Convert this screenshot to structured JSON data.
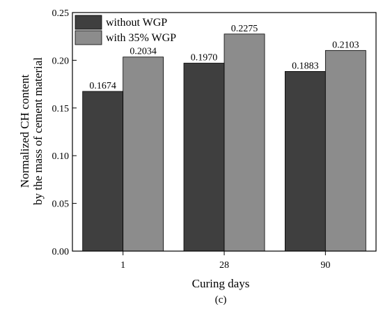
{
  "chart_data": {
    "type": "bar",
    "categories": [
      "1",
      "28",
      "90"
    ],
    "series": [
      {
        "name": "without WGP",
        "values": [
          0.1674,
          0.197,
          0.1883
        ],
        "labels": [
          "0.1674",
          "0.1970",
          "0.1883"
        ],
        "color": "#3f3f3f"
      },
      {
        "name": "with 35% WGP",
        "values": [
          0.2034,
          0.2275,
          0.2103
        ],
        "labels": [
          "0.2034",
          "0.2275",
          "0.2103"
        ],
        "color": "#8c8c8c"
      }
    ],
    "xlabel": "Curing days",
    "ylabel_lines": [
      "Normalized CH content",
      "by the mass of cement  material"
    ],
    "ylim": [
      0,
      0.25
    ],
    "yticks": [
      0.0,
      0.05,
      0.1,
      0.15,
      0.2,
      0.25
    ],
    "ytick_labels": [
      "0.00",
      "0.05",
      "0.10",
      "0.15",
      "0.20",
      "0.25"
    ],
    "legend_position": "top-left",
    "grid": false,
    "caption": "(c)"
  }
}
